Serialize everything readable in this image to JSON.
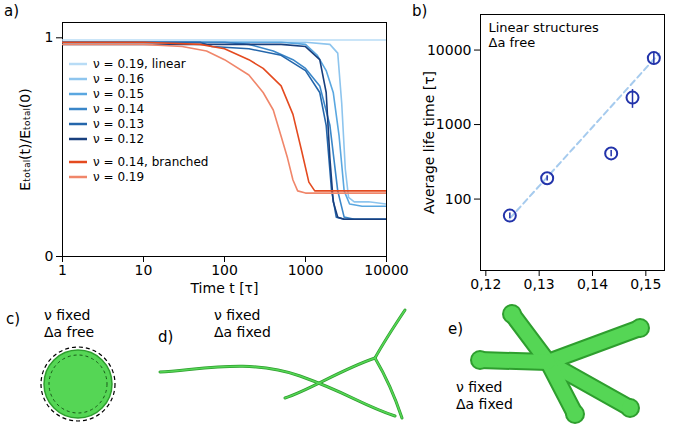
{
  "chart_data": [
    {
      "panel": "a)",
      "type": "line",
      "xlabel": "Time t [τ]",
      "ylabel": "Eₜₒₜₐₗ(t)/Eₜₒₜₐₗ(0)",
      "log": "x",
      "xlim": [
        1,
        10000
      ],
      "xticks": [
        1,
        10,
        100,
        1000,
        10000
      ],
      "ylim": [
        0,
        1.07
      ],
      "yticks": [
        0,
        1
      ],
      "legend": "left",
      "series": [
        {
          "name": "ν = 0.19, linear",
          "color": "#b8dcf6",
          "x": [
            1,
            10,
            100,
            1000,
            10000
          ],
          "values": [
            0.99,
            0.99,
            0.99,
            0.99,
            0.99
          ]
        },
        {
          "name": "ν = 0.16",
          "color": "#8ec5ee",
          "x": [
            1,
            10,
            100,
            1000,
            2000,
            2500,
            2800,
            3100,
            3400,
            4000,
            6000,
            10000
          ],
          "values": [
            0.98,
            0.98,
            0.98,
            0.98,
            0.97,
            0.93,
            0.7,
            0.4,
            0.27,
            0.25,
            0.25,
            0.24
          ]
        },
        {
          "name": "ν = 0.15",
          "color": "#5aa7e0",
          "x": [
            1,
            10,
            100,
            500,
            1000,
            1400,
            1800,
            2200,
            2600,
            3000,
            3500,
            5000,
            10000
          ],
          "values": [
            0.98,
            0.98,
            0.98,
            0.98,
            0.97,
            0.92,
            0.85,
            0.75,
            0.55,
            0.3,
            0.24,
            0.23,
            0.23
          ]
        },
        {
          "name": "ν = 0.14",
          "color": "#3a86c8",
          "x": [
            1,
            10,
            100,
            200,
            400,
            700,
            1000,
            1500,
            2000,
            2500,
            3000,
            4000,
            10000
          ],
          "values": [
            0.98,
            0.98,
            0.98,
            0.97,
            0.94,
            0.9,
            0.86,
            0.78,
            0.6,
            0.3,
            0.18,
            0.17,
            0.17
          ]
        },
        {
          "name": "ν = 0.13",
          "color": "#2466ab",
          "x": [
            1,
            10,
            50,
            70,
            200,
            500,
            1000,
            1500,
            1800,
            2100,
            2400,
            3000,
            10000
          ],
          "values": [
            0.98,
            0.98,
            0.98,
            0.96,
            0.95,
            0.92,
            0.85,
            0.75,
            0.6,
            0.3,
            0.18,
            0.17,
            0.17
          ]
        },
        {
          "name": "ν = 0.12",
          "color": "#183f7e",
          "x": [
            1,
            10,
            100,
            500,
            1000,
            1500,
            1800,
            2000,
            2200,
            2500,
            3000,
            10000
          ],
          "values": [
            0.97,
            0.97,
            0.97,
            0.97,
            0.96,
            0.9,
            0.75,
            0.45,
            0.25,
            0.18,
            0.17,
            0.17
          ]
        },
        {
          "name": "ν = 0.14, branched",
          "color": "#e44a1f",
          "x": [
            1,
            10,
            50,
            100,
            200,
            300,
            500,
            700,
            900,
            1100,
            1300,
            2000,
            10000
          ],
          "values": [
            0.98,
            0.98,
            0.97,
            0.95,
            0.9,
            0.86,
            0.78,
            0.65,
            0.48,
            0.34,
            0.3,
            0.3,
            0.3
          ]
        },
        {
          "name": "ν = 0.19",
          "color": "#f0866a",
          "x": [
            1,
            10,
            30,
            60,
            100,
            200,
            300,
            400,
            500,
            600,
            700,
            800,
            1000,
            10000
          ],
          "values": [
            0.97,
            0.97,
            0.96,
            0.94,
            0.9,
            0.83,
            0.75,
            0.67,
            0.55,
            0.45,
            0.35,
            0.3,
            0.29,
            0.29
          ]
        }
      ]
    },
    {
      "panel": "b)",
      "type": "scatter",
      "ylabel": "Average life time [τ]",
      "annotations": [
        "Linear structures",
        "Δa free"
      ],
      "log": "y",
      "xlim": [
        0.119,
        0.1535
      ],
      "xticks": [
        {
          "value": 0.12,
          "label": "0,12"
        },
        {
          "value": 0.13,
          "label": "0,13"
        },
        {
          "value": 0.14,
          "label": "0,14"
        },
        {
          "value": 0.15,
          "label": "0,15"
        }
      ],
      "ylim": [
        11,
        30000
      ],
      "yticks": [
        100,
        1000,
        10000
      ],
      "series": [
        {
          "type": "scatter",
          "color": "#2233aa",
          "marker": "circle",
          "x": [
            0.1245,
            0.1315,
            0.1435,
            0.1475,
            0.1515
          ],
          "values": [
            60,
            190,
            410,
            2300,
            7800
          ],
          "error": [
            5,
            15,
            40,
            650,
            1500
          ]
        },
        {
          "type": "line",
          "color": "#a6cbee",
          "line_style": "dashed",
          "x": [
            0.1245,
            0.1525
          ],
          "values": [
            55,
            9000
          ]
        }
      ]
    }
  ],
  "illustrations": [
    {
      "panel": "c)",
      "text": [
        "ν fixed",
        "Δa free"
      ]
    },
    {
      "panel": "d)",
      "text": [
        "ν fixed",
        "Δa fixed"
      ]
    },
    {
      "panel": "e)",
      "text": [
        "ν fixed",
        "Δa fixed"
      ]
    }
  ]
}
